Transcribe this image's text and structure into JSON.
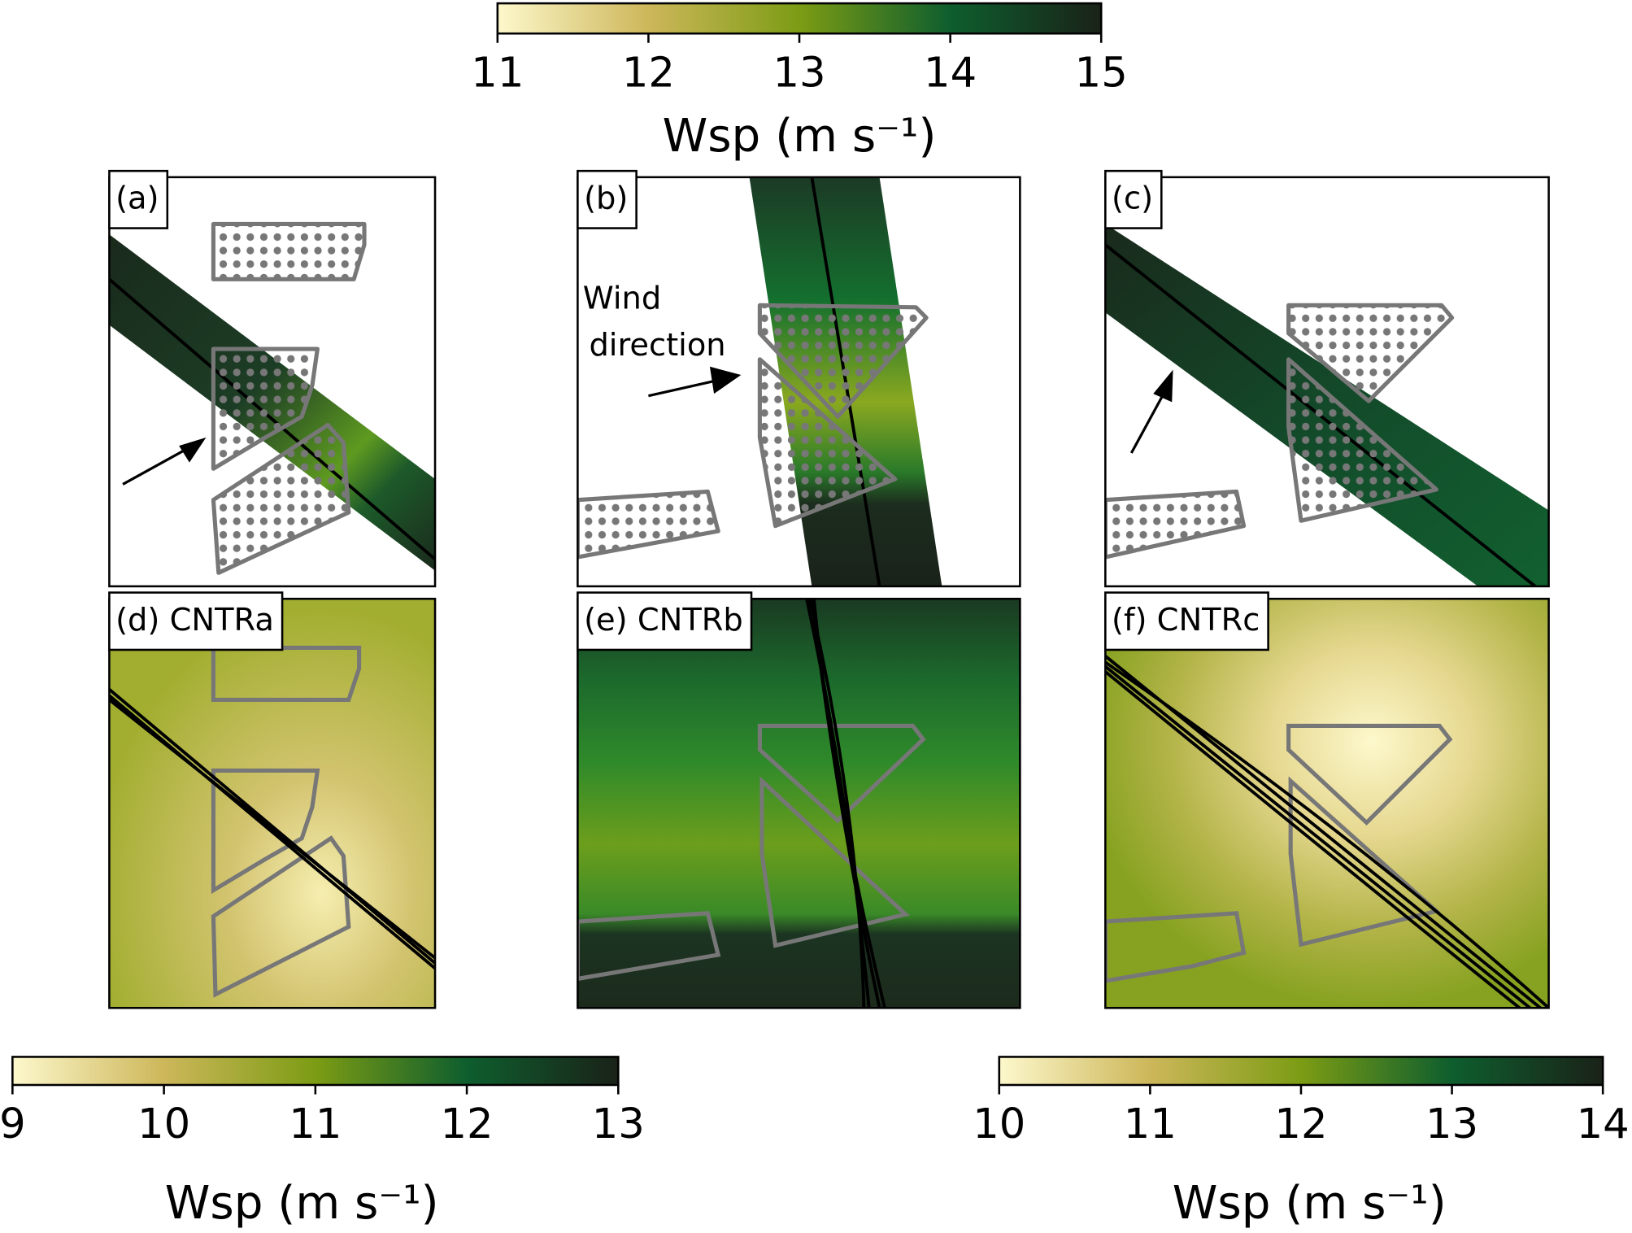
{
  "colorbars": [
    {
      "lim": [
        11,
        15
      ],
      "ticks": [
        11,
        12,
        13,
        14,
        15
      ],
      "label": "Wsp (m s⁻¹)"
    },
    {
      "lim": [
        9,
        13
      ],
      "ticks": [
        9,
        10,
        11,
        12,
        13
      ],
      "label": "Wsp (m s⁻¹)"
    },
    {
      "lim": [
        10,
        14
      ],
      "ticks": [
        10,
        11,
        12,
        13,
        14
      ],
      "label": "Wsp (m s⁻¹)"
    }
  ],
  "panels": [
    {
      "label": "(a)"
    },
    {
      "label": "(b)"
    },
    {
      "label": "(c)"
    },
    {
      "label": "(d) CNTRa"
    },
    {
      "label": "(e) CNTRb"
    },
    {
      "label": "(f) CNTRc"
    }
  ],
  "annotation": [
    "Wind",
    "direction"
  ]
}
